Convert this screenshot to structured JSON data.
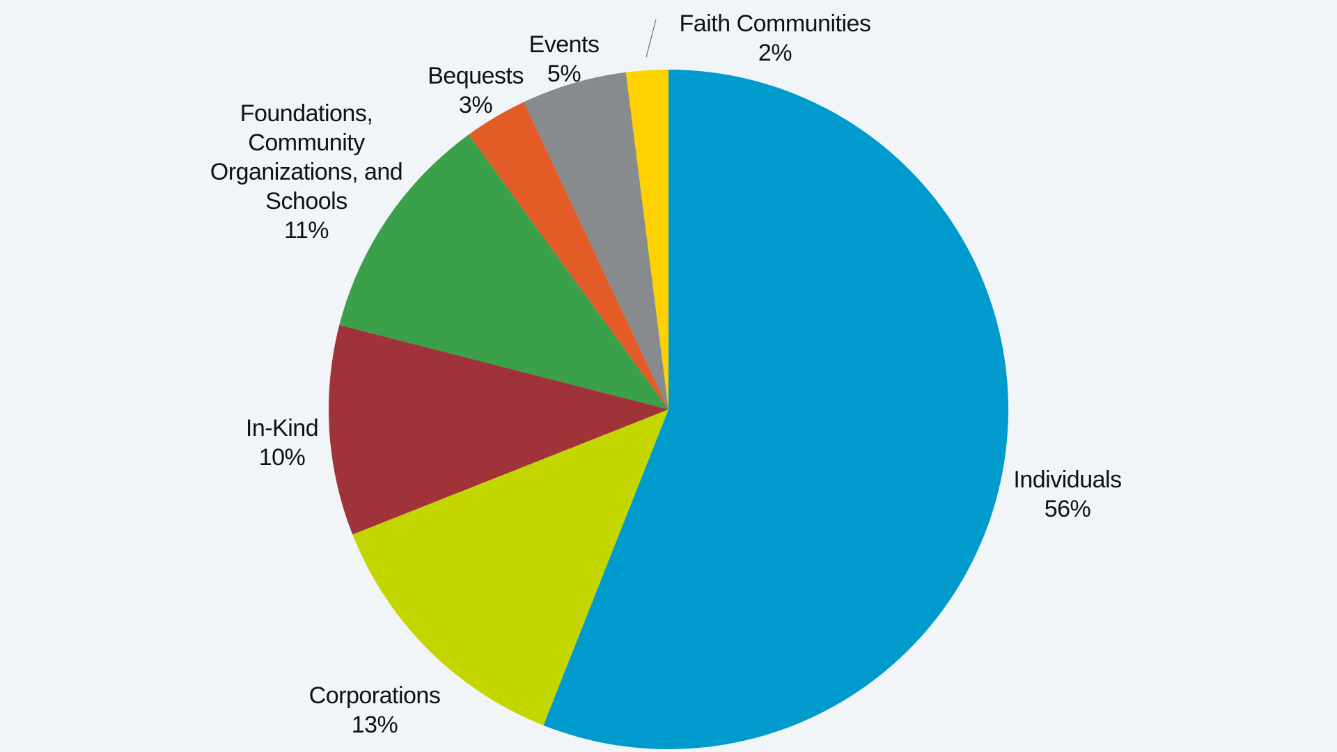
{
  "chart_data": {
    "type": "pie",
    "title": "",
    "start": "top",
    "direction": "clockwise",
    "legend": "none",
    "slices": [
      {
        "label_lines": [
          "Individuals"
        ],
        "value_label": "56%",
        "value": 56,
        "color": "#009ACD"
      },
      {
        "label_lines": [
          "Corporations"
        ],
        "value_label": "13%",
        "value": 13,
        "color": "#C4D600"
      },
      {
        "label_lines": [
          "In-Kind"
        ],
        "value_label": "10%",
        "value": 10,
        "color": "#A0333A"
      },
      {
        "label_lines": [
          "Foundations,",
          "Community",
          "Organizations, and",
          "Schools"
        ],
        "value_label": "11%",
        "value": 11,
        "color": "#3BA04A"
      },
      {
        "label_lines": [
          "Bequests"
        ],
        "value_label": "3%",
        "value": 3,
        "color": "#E35C27"
      },
      {
        "label_lines": [
          "Events"
        ],
        "value_label": "5%",
        "value": 5,
        "color": "#878B8D"
      },
      {
        "label_lines": [
          "Faith Communities"
        ],
        "value_label": "2%",
        "value": 2,
        "color": "#FFD100"
      }
    ]
  }
}
